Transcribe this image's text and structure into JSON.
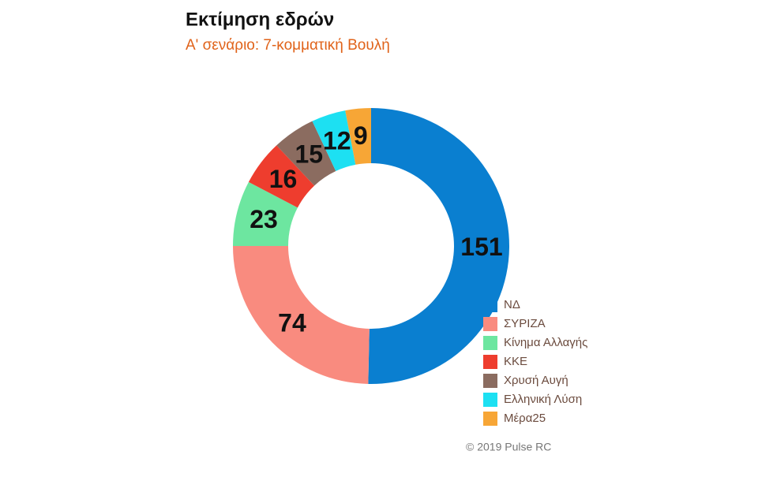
{
  "chart_data": {
    "type": "donut",
    "title": "Εκτίμηση εδρών",
    "subtitle": "Α' σενάριο: 7-κομματική Βουλή",
    "categories": [
      "ΝΔ",
      "ΣΥΡΙΖΑ",
      "Κίνημα Αλλαγής",
      "ΚΚΕ",
      "Χρυσή Αυγή",
      "Ελληνική Λύση",
      "Μέρα25"
    ],
    "values": [
      151,
      74,
      23,
      16,
      15,
      12,
      9
    ],
    "colors": [
      "#0a7fd0",
      "#f98b7f",
      "#6de6a0",
      "#ee3d2e",
      "#8b6c60",
      "#1de0f2",
      "#f7a636"
    ],
    "legend": "bottom-right",
    "caption": "© 2019 Pulse RC"
  }
}
